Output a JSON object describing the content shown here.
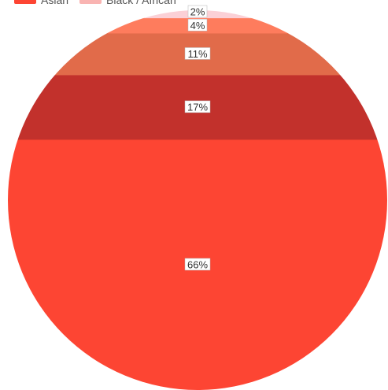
{
  "chart_data": {
    "type": "pie",
    "categories": [
      "Asian",
      "Black / African",
      "",
      "",
      ""
    ],
    "values": [
      66,
      17,
      11,
      4,
      2
    ],
    "labels": [
      "66%",
      "17%",
      "11%",
      "4%",
      "2%"
    ],
    "colors": [
      "#fd4533",
      "#c2312c",
      "#e16b4a",
      "#fe7c5d",
      "#fbd0d6"
    ],
    "legend_position": "top-left"
  }
}
